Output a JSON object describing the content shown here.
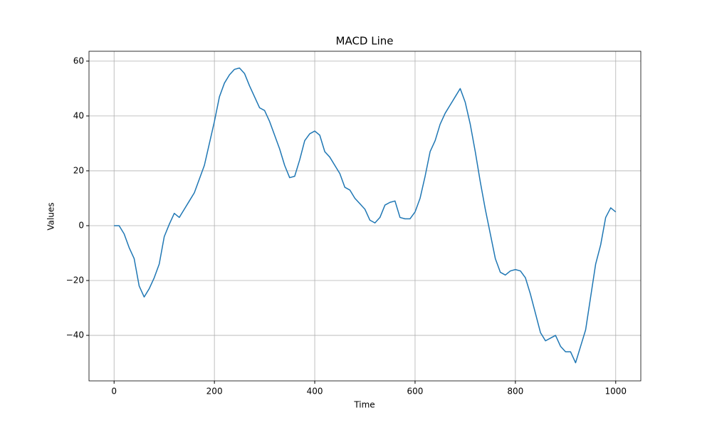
{
  "chart_data": {
    "type": "line",
    "title": "MACD Line",
    "xlabel": "Time",
    "ylabel": "Values",
    "x": [
      0,
      10,
      20,
      30,
      40,
      50,
      60,
      70,
      80,
      90,
      100,
      110,
      120,
      130,
      140,
      150,
      160,
      170,
      180,
      190,
      200,
      210,
      220,
      230,
      240,
      250,
      260,
      270,
      280,
      290,
      300,
      310,
      320,
      330,
      340,
      350,
      360,
      370,
      380,
      390,
      400,
      410,
      420,
      430,
      440,
      450,
      460,
      470,
      480,
      490,
      500,
      510,
      520,
      530,
      540,
      550,
      560,
      570,
      580,
      590,
      600,
      610,
      620,
      630,
      640,
      650,
      660,
      670,
      680,
      690,
      700,
      710,
      720,
      730,
      740,
      750,
      760,
      770,
      780,
      790,
      800,
      810,
      820,
      830,
      840,
      850,
      860,
      870,
      880,
      890,
      900,
      910,
      920,
      930,
      940,
      950,
      960,
      970,
      980,
      990,
      1000
    ],
    "series": [
      {
        "color": "#1f77b4",
        "values": [
          0,
          0,
          -3,
          -8,
          -12,
          -22,
          -26,
          -23,
          -19,
          -14,
          -4,
          0.5,
          4.5,
          3,
          6,
          9,
          12,
          17,
          22,
          30,
          38,
          47,
          52,
          55,
          57,
          57.5,
          55.5,
          51,
          47,
          43,
          42,
          38,
          33,
          28,
          22,
          17.5,
          18,
          24,
          31,
          33.5,
          34.5,
          33,
          27,
          25,
          22,
          19,
          14,
          13,
          10,
          8,
          6,
          2,
          1,
          3,
          7.5,
          8.5,
          9,
          3,
          2.5,
          2.5,
          5,
          10,
          18,
          27,
          31,
          37,
          41,
          44,
          47,
          50,
          45,
          37,
          27,
          16,
          6,
          -3,
          -12,
          -17,
          -18,
          -16.5,
          -16,
          -16.5,
          -19,
          -25,
          -32,
          -39,
          -42,
          -41,
          -40,
          -44,
          -46,
          -46,
          -50,
          -44,
          -38,
          -26,
          -14,
          -7,
          3,
          6.5,
          5
        ]
      }
    ],
    "xlim": [
      -50,
      1050
    ],
    "ylim": [
      -56.6,
      63.6
    ],
    "xticks": [
      0,
      200,
      400,
      600,
      800,
      1000
    ],
    "yticks": [
      {
        "value": -40,
        "label": "−40"
      },
      {
        "value": -20,
        "label": "−20"
      },
      0,
      20,
      40,
      60
    ],
    "grid": true
  }
}
